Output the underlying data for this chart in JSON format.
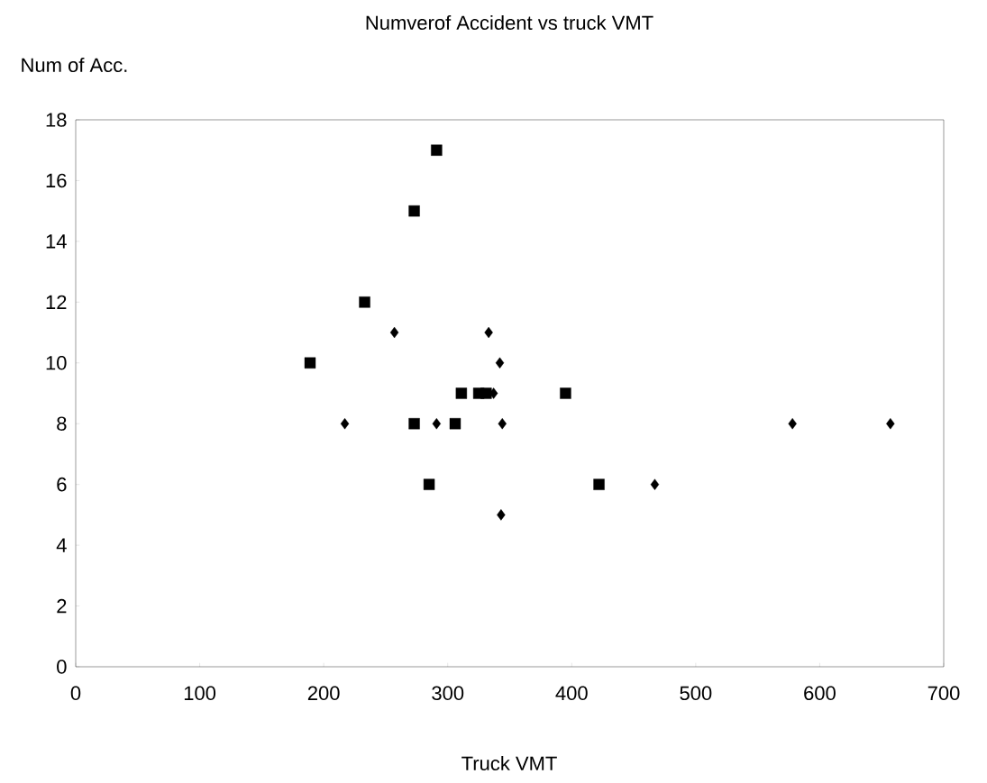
{
  "chart_data": {
    "type": "scatter",
    "title": "Numverof Accident vs truck VMT",
    "xlabel": "Truck VMT",
    "ylabel": "Num of Acc.",
    "xlim": [
      0,
      700
    ],
    "xticks": [
      0,
      100,
      200,
      300,
      400,
      500,
      600,
      700
    ],
    "ylim": [
      0,
      18
    ],
    "yticks": [
      0,
      2,
      4,
      6,
      8,
      10,
      12,
      14,
      16,
      18
    ],
    "grid": false,
    "series": [
      {
        "color": "#000000",
        "marker": "diamond",
        "x": [
          257,
          217,
          291,
          344,
          578,
          657,
          467,
          343,
          337,
          333,
          342
        ],
        "values": [
          11,
          8,
          8,
          8,
          8,
          8,
          6,
          5,
          9,
          11,
          10
        ]
      },
      {
        "color": "#000000",
        "marker": "square",
        "x": [
          189,
          273,
          306,
          285,
          422,
          311,
          325,
          331,
          395,
          233,
          273,
          291
        ],
        "values": [
          10,
          8,
          8,
          6,
          6,
          9,
          9,
          9,
          9,
          12,
          15,
          17
        ]
      }
    ]
  }
}
